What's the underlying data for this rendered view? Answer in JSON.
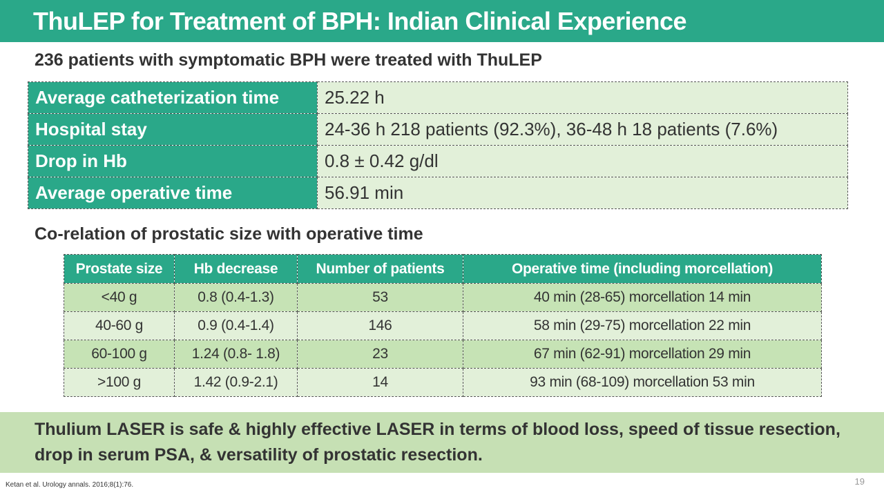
{
  "title": "ThuLEP for Treatment of BPH: Indian Clinical Experience",
  "subheading1": "236 patients with symptomatic BPH were treated with ThuLEP",
  "summary": [
    {
      "label": "Average catheterization time",
      "value": "25.22 h"
    },
    {
      "label": "Hospital stay",
      "value": "24-36 h 218 patients (92.3%), 36-48 h 18 patients (7.6%)"
    },
    {
      "label": "Drop in Hb",
      "value": "0.8 ± 0.42 g/dl"
    },
    {
      "label": "Average operative time",
      "value": "56.91 min"
    }
  ],
  "subheading2": "Co-relation of prostatic size with operative time",
  "table": {
    "headers": [
      "Prostate size",
      "Hb decrease",
      "Number of patients",
      "Operative time (including morcellation)"
    ],
    "rows": [
      [
        "<40 g",
        "0.8 (0.4-1.3)",
        "53",
        "40 min (28-65) morcellation 14 min"
      ],
      [
        "40-60 g",
        "0.9 (0.4-1.4)",
        "146",
        "58 min (29-75) morcellation 22 min"
      ],
      [
        "60-100 g",
        "1.24 (0.8- 1.8)",
        "23",
        "67 min (62-91) morcellation 29 min"
      ],
      [
        ">100 g",
        "1.42 (0.9-2.1)",
        "14",
        "93 min (68-109) morcellation 53 min"
      ]
    ]
  },
  "conclusion": "Thulium LASER is safe & highly effective LASER in terms of blood loss, speed of tissue resection, drop in serum PSA, & versatility of prostatic resection.",
  "citation": "Ketan et al. Urology annals. 2016;8(1):76.",
  "page_number": "19",
  "colors": {
    "accent": "#2aa889",
    "light_green": "#e2f0d9",
    "mid_green": "#c6e3b5",
    "conclusion_bg": "#c6e0b4"
  }
}
